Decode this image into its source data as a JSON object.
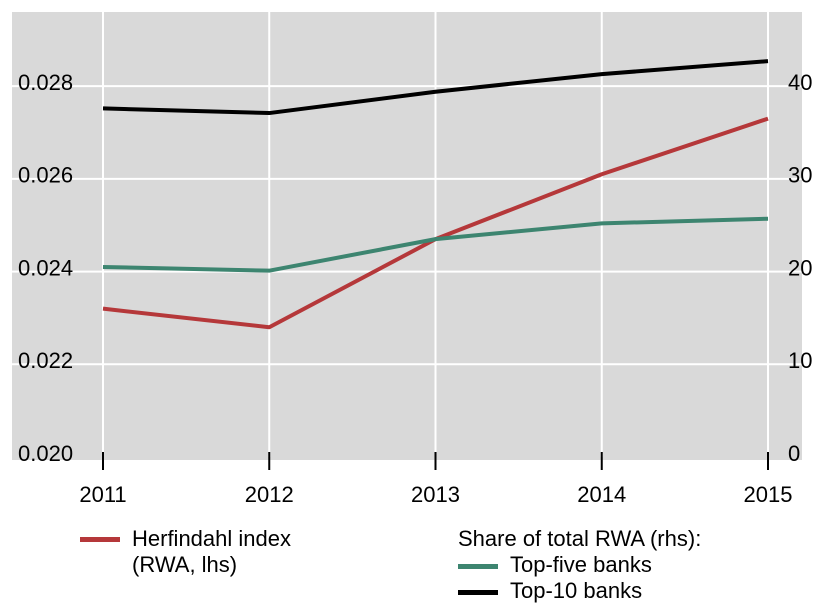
{
  "chart_data": {
    "type": "line",
    "categories": [
      "2011",
      "2012",
      "2013",
      "2014",
      "2015"
    ],
    "series": [
      {
        "name": "Herfindahl index (RWA, lhs)",
        "color": "#b5383a",
        "values": [
          0.0232,
          0.0228,
          0.0247,
          0.0261,
          0.0273
        ]
      },
      {
        "name": "Top-five banks",
        "color": "#3d8570",
        "axis": "y2",
        "values": [
          20.5,
          20.1,
          23.5,
          25.2,
          25.7
        ]
      },
      {
        "name": "Top-10 banks",
        "color": "#000000",
        "axis": "y2",
        "values": [
          37.6,
          37.1,
          39.4,
          41.3,
          42.7
        ]
      }
    ],
    "legend_group_title": "Share of total RWA (rhs):",
    "ylim": [
      0.02,
      0.0296
    ],
    "yticks": [
      {
        "value": 0.02,
        "label": "0.020"
      },
      0.022,
      0.024,
      0.026,
      0.028
    ],
    "y2lim": [
      0,
      48
    ],
    "y2ticks": [
      0,
      10,
      20,
      30,
      40
    ],
    "grid": true
  }
}
